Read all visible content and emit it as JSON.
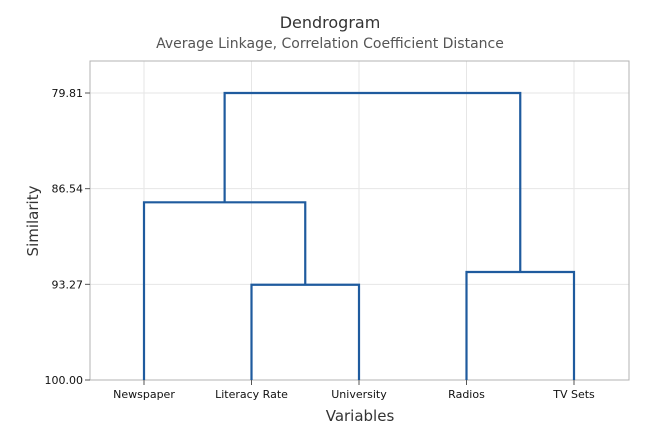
{
  "chart_data": {
    "type": "dendrogram",
    "title": "Dendrogram",
    "subtitle": "Average Linkage, Correlation Coefficient Distance",
    "xlabel": "Variables",
    "ylabel": "Similarity",
    "leaves": [
      "Newspaper",
      "Literacy Rate",
      "University",
      "Radios",
      "TV Sets"
    ],
    "y_ticks": [
      "79.81",
      "86.54",
      "93.27",
      "100.00"
    ],
    "ylim": [
      79.81,
      100.0
    ],
    "y_inverted": true,
    "grid": true,
    "line_color": "#1f5b9e",
    "merges": [
      {
        "left": 1,
        "right": 2,
        "similarity": 93.3
      },
      {
        "left": 3,
        "right": 4,
        "similarity": 92.4
      },
      {
        "left": 0,
        "right": "m0",
        "similarity": 87.5
      },
      {
        "left": "m2",
        "right": "m1",
        "similarity": 79.81
      }
    ]
  }
}
